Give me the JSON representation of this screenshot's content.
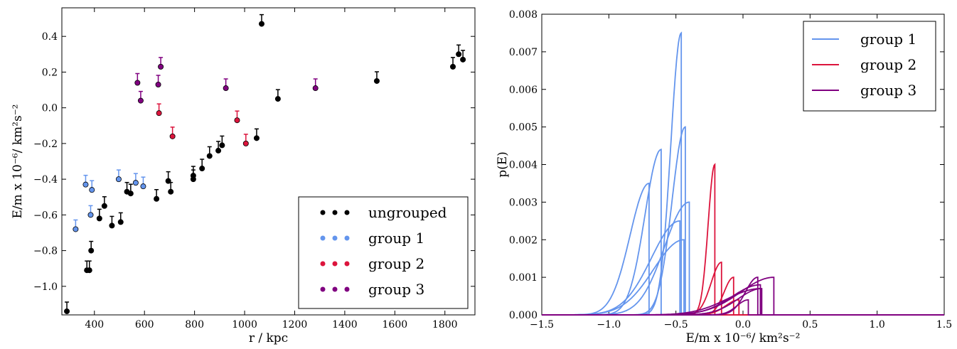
{
  "chart_data": [
    {
      "type": "scatter",
      "title": "",
      "xlabel": "r / kpc",
      "ylabel": "E/m x 10⁻⁶/ km²s⁻²",
      "xlim": [
        270,
        1920
      ],
      "ylim": [
        -1.16,
        0.56
      ],
      "xticks": [
        400,
        600,
        800,
        1000,
        1200,
        1400,
        1600,
        1800
      ],
      "xtick_labels": [
        "400",
        "600",
        "800",
        "1000",
        "1200",
        "1400",
        "1600",
        "1800"
      ],
      "yticks": [
        -1.0,
        -0.8,
        -0.6,
        -0.4,
        -0.2,
        0.0,
        0.2,
        0.4
      ],
      "ytick_labels": [
        "−1.0",
        "−0.8",
        "−0.6",
        "−0.4",
        "−0.2",
        "0.0",
        "0.2",
        "0.4"
      ],
      "grid": false,
      "legend_position": "bottom-right",
      "series": [
        {
          "name": "ungrouped",
          "color": "#000000",
          "points": [
            [
              290,
              -1.14
            ],
            [
              370,
              -0.91
            ],
            [
              380,
              -0.91
            ],
            [
              387,
              -0.8
            ],
            [
              420,
              -0.62
            ],
            [
              440,
              -0.55
            ],
            [
              470,
              -0.66
            ],
            [
              505,
              -0.64
            ],
            [
              530,
              -0.47
            ],
            [
              545,
              -0.48
            ],
            [
              648,
              -0.51
            ],
            [
              695,
              -0.41
            ],
            [
              705,
              -0.47
            ],
            [
              795,
              -0.38
            ],
            [
              795,
              -0.4
            ],
            [
              830,
              -0.34
            ],
            [
              860,
              -0.27
            ],
            [
              895,
              -0.24
            ],
            [
              910,
              -0.21
            ],
            [
              1048,
              -0.17
            ],
            [
              1068,
              0.47
            ],
            [
              1133,
              0.05
            ],
            [
              1528,
              0.15
            ],
            [
              1832,
              0.23
            ],
            [
              1855,
              0.3
            ],
            [
              1872,
              0.27
            ]
          ]
        },
        {
          "name": "group 1",
          "color": "#6495ed",
          "points": [
            [
              325,
              -0.68
            ],
            [
              365,
              -0.43
            ],
            [
              385,
              -0.6
            ],
            [
              390,
              -0.46
            ],
            [
              497,
              -0.4
            ],
            [
              565,
              -0.42
            ],
            [
              595,
              -0.44
            ]
          ]
        },
        {
          "name": "group 2",
          "color": "#dc143c",
          "points": [
            [
              658,
              -0.03
            ],
            [
              712,
              -0.16
            ],
            [
              970,
              -0.07
            ],
            [
              1005,
              -0.2
            ]
          ]
        },
        {
          "name": "group 3",
          "color": "#800080",
          "points": [
            [
              572,
              0.14
            ],
            [
              585,
              0.04
            ],
            [
              655,
              0.13
            ],
            [
              665,
              0.23
            ],
            [
              925,
              0.11
            ],
            [
              1283,
              0.11
            ]
          ]
        }
      ]
    },
    {
      "type": "line",
      "title": "",
      "xlabel": "E/m x 10⁻⁶/ km²s⁻²",
      "ylabel": "p(E)",
      "xlim": [
        -1.5,
        1.5
      ],
      "ylim": [
        0,
        0.008
      ],
      "xticks": [
        -1.5,
        -1.0,
        -0.5,
        0.0,
        0.5,
        1.0,
        1.5
      ],
      "xtick_labels": [
        "−1.5",
        "−1.0",
        "−0.5",
        "0.0",
        "0.5",
        "1.0",
        "1.5"
      ],
      "yticks": [
        0,
        0.001,
        0.002,
        0.003,
        0.004,
        0.005,
        0.006,
        0.007,
        0.008
      ],
      "ytick_labels": [
        "0.000",
        "0.001",
        "0.002",
        "0.003",
        "0.004",
        "0.005",
        "0.006",
        "0.007",
        "0.008"
      ],
      "grid": false,
      "legend_position": "top-right",
      "series": [
        {
          "name": "group 1",
          "color": "#6495ed",
          "curves": [
            {
              "peak_x": -0.7,
              "peak_y": 0.0035,
              "width": 0.2
            },
            {
              "peak_x": -0.61,
              "peak_y": 0.0044,
              "width": 0.17
            },
            {
              "peak_x": -0.46,
              "peak_y": 0.0075,
              "width": 0.11
            },
            {
              "peak_x": -0.43,
              "peak_y": 0.005,
              "width": 0.14
            },
            {
              "peak_x": -0.47,
              "peak_y": 0.0025,
              "width": 0.3
            },
            {
              "peak_x": -0.4,
              "peak_y": 0.003,
              "width": 0.26
            },
            {
              "peak_x": -0.44,
              "peak_y": 0.002,
              "width": 0.32
            }
          ]
        },
        {
          "name": "group 2",
          "color": "#dc143c",
          "curves": [
            {
              "peak_x": -0.21,
              "peak_y": 0.004,
              "width": 0.07
            },
            {
              "peak_x": -0.16,
              "peak_y": 0.0014,
              "width": 0.11
            },
            {
              "peak_x": -0.07,
              "peak_y": 0.001,
              "width": 0.1
            },
            {
              "peak_x": -0.03,
              "peak_y": 0.0004,
              "width": 0.14
            }
          ]
        },
        {
          "name": "group 3",
          "color": "#800080",
          "curves": [
            {
              "peak_x": 0.11,
              "peak_y": 0.001,
              "width": 0.13
            },
            {
              "peak_x": 0.13,
              "peak_y": 0.0008,
              "width": 0.3
            },
            {
              "peak_x": 0.14,
              "peak_y": 0.0007,
              "width": 0.25
            },
            {
              "peak_x": 0.04,
              "peak_y": 0.0004,
              "width": 0.12
            },
            {
              "peak_x": 0.23,
              "peak_y": 0.001,
              "width": 0.35
            },
            {
              "peak_x": 0.13,
              "peak_y": 0.0007,
              "width": 0.35
            }
          ]
        }
      ]
    }
  ]
}
